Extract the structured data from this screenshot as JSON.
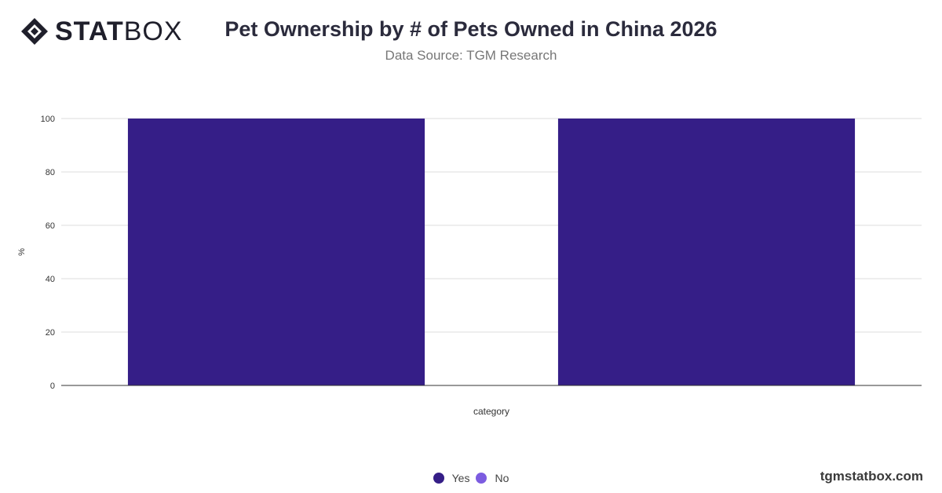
{
  "logo": {
    "bold": "STAT",
    "light": "BOX"
  },
  "header": {
    "title": "Pet Ownership by # of Pets Owned in China 2026",
    "subtitle": "Data Source: TGM Research"
  },
  "footer": {
    "site": "tgmstatbox.com"
  },
  "colors": {
    "yes": "#351e87",
    "no": "#7c5ce0"
  },
  "chart_data": {
    "type": "bar",
    "title": "Pet Ownership by # of Pets Owned in China 2026",
    "subtitle": "Data Source: TGM Research",
    "xlabel": "category",
    "ylabel": "%",
    "ylim": [
      0,
      100
    ],
    "yticks": [
      0,
      20,
      40,
      60,
      80,
      100
    ],
    "categories": [
      "",
      ""
    ],
    "series": [
      {
        "name": "Yes",
        "values": [
          100,
          100
        ]
      },
      {
        "name": "No",
        "values": [
          0,
          0
        ]
      }
    ],
    "grid": true,
    "legend": "bottom-center"
  },
  "legend": [
    {
      "label": "Yes",
      "color": "#351e87"
    },
    {
      "label": "No",
      "color": "#7c5ce0"
    }
  ]
}
